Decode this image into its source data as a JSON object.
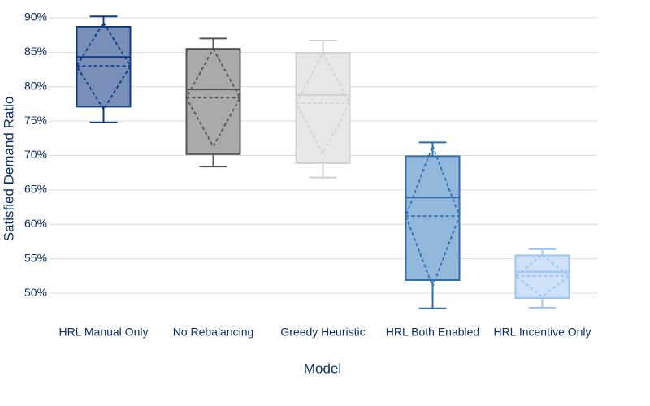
{
  "chart_data": {
    "type": "box",
    "xlabel": "Model",
    "ylabel": "Satisfied Demand Ratio",
    "categories": [
      "HRL Manual Only",
      "No Rebalancing",
      "Greedy Heuristic",
      "HRL Both Enabled",
      "HRL Incentive Only"
    ],
    "boxes": [
      {
        "min": 74.8,
        "q1": 77.1,
        "median": 84.3,
        "q3": 88.7,
        "max": 90.2,
        "mean": 83.0,
        "sd": 6.3,
        "color": "#0d3b82",
        "fill": "#7a8fb7"
      },
      {
        "min": 68.4,
        "q1": 70.2,
        "median": 79.6,
        "q3": 85.5,
        "max": 87.0,
        "mean": 78.4,
        "sd": 7.1,
        "color": "#555555",
        "fill": "#aaaaaa"
      },
      {
        "min": 66.8,
        "q1": 68.9,
        "median": 78.8,
        "q3": 84.9,
        "max": 86.7,
        "mean": 77.6,
        "sd": 7.3,
        "color": "#d0d0d0",
        "fill": "#e7e7e7"
      },
      {
        "min": 47.8,
        "q1": 51.9,
        "median": 63.9,
        "q3": 69.9,
        "max": 71.9,
        "mean": 61.2,
        "sd": 10.2,
        "color": "#2f6fb0",
        "fill": "#94b7dc"
      },
      {
        "min": 47.9,
        "q1": 49.3,
        "median": 53.1,
        "q3": 55.5,
        "max": 56.4,
        "mean": 52.5,
        "sd": 3.0,
        "color": "#9ec5f0",
        "fill": "#cfe1f8"
      }
    ],
    "ylim": [
      46,
      91
    ],
    "yticks": [
      {
        "value": 50,
        "label": "50%"
      },
      {
        "value": 55,
        "label": "55%"
      },
      {
        "value": 60,
        "label": "60%"
      },
      {
        "value": 65,
        "label": "65%"
      },
      {
        "value": 70,
        "label": "70%"
      },
      {
        "value": 75,
        "label": "75%"
      },
      {
        "value": 80,
        "label": "80%"
      },
      {
        "value": 85,
        "label": "85%"
      },
      {
        "value": 90,
        "label": "90%"
      }
    ],
    "grid": true
  }
}
